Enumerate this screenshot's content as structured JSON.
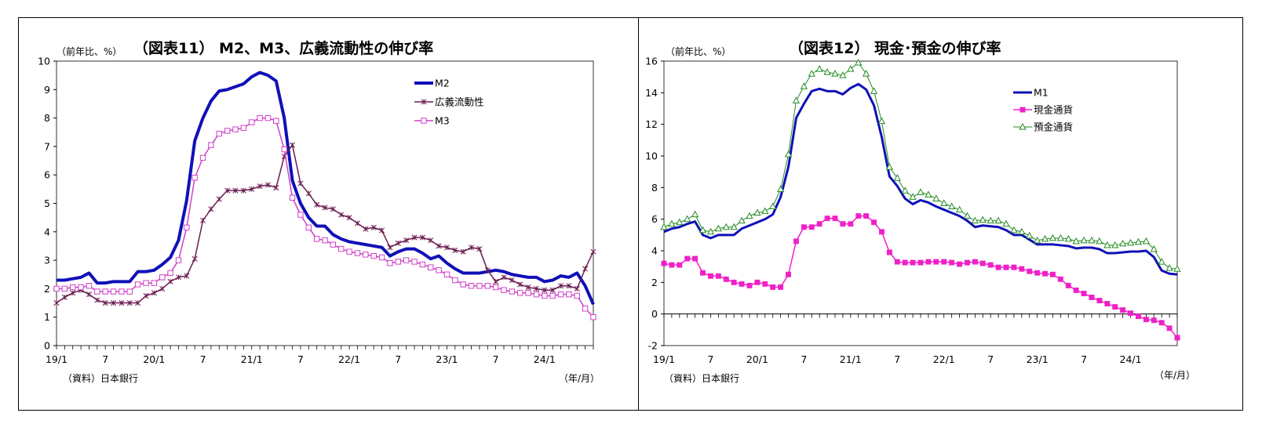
{
  "chart_data": [
    {
      "type": "line",
      "title": "（図表11） M2、M3、広義流動性の伸び率",
      "unit_label": "（前年比、%）",
      "source": "（資料）日本銀行",
      "xaxis_unit": "（年/月）",
      "ylim": [
        0,
        10
      ],
      "yticks": [
        0,
        1,
        2,
        3,
        4,
        5,
        6,
        7,
        8,
        9,
        10
      ],
      "x_tick_labels": [
        {
          "index": 0,
          "label": "19/1"
        },
        {
          "index": 6,
          "label": "7"
        },
        {
          "index": 12,
          "label": "20/1"
        },
        {
          "index": 18,
          "label": "7"
        },
        {
          "index": 24,
          "label": "21/1"
        },
        {
          "index": 30,
          "label": "7"
        },
        {
          "index": 36,
          "label": "22/1"
        },
        {
          "index": 42,
          "label": "7"
        },
        {
          "index": 48,
          "label": "23/1"
        },
        {
          "index": 54,
          "label": "7"
        },
        {
          "index": 60,
          "label": "24/1"
        }
      ],
      "n_months": 67,
      "legend_position": "top-right",
      "series": [
        {
          "name": "M2",
          "color": "#1010b8",
          "marker": "none",
          "width": 4,
          "values": [
            2.3,
            2.3,
            2.35,
            2.4,
            2.55,
            2.2,
            2.2,
            2.25,
            2.25,
            2.25,
            2.6,
            2.6,
            2.65,
            2.85,
            3.1,
            3.7,
            5.1,
            7.2,
            8.0,
            8.6,
            8.95,
            9.0,
            9.1,
            9.2,
            9.45,
            9.6,
            9.5,
            9.3,
            8.0,
            5.8,
            5.0,
            4.5,
            4.2,
            4.2,
            3.9,
            3.75,
            3.65,
            3.6,
            3.55,
            3.5,
            3.45,
            3.15,
            3.3,
            3.4,
            3.4,
            3.25,
            3.05,
            3.15,
            2.9,
            2.7,
            2.55,
            2.55,
            2.55,
            2.6,
            2.65,
            2.6,
            2.5,
            2.45,
            2.4,
            2.4,
            2.25,
            2.3,
            2.45,
            2.4,
            2.55,
            2.1,
            1.45
          ]
        },
        {
          "name": "広義流動性",
          "color": "#6a1b50",
          "marker": "asterisk",
          "width": 1.5,
          "values": [
            1.5,
            1.7,
            1.85,
            1.95,
            1.8,
            1.6,
            1.5,
            1.5,
            1.5,
            1.5,
            1.5,
            1.75,
            1.85,
            2.0,
            2.25,
            2.4,
            2.45,
            3.05,
            4.4,
            4.8,
            5.15,
            5.45,
            5.45,
            5.45,
            5.5,
            5.6,
            5.65,
            5.55,
            6.65,
            7.05,
            5.7,
            5.35,
            4.95,
            4.85,
            4.8,
            4.6,
            4.5,
            4.3,
            4.1,
            4.15,
            4.05,
            3.45,
            3.6,
            3.7,
            3.8,
            3.8,
            3.7,
            3.5,
            3.45,
            3.35,
            3.3,
            3.45,
            3.4,
            2.65,
            2.25,
            2.4,
            2.3,
            2.15,
            2.05,
            2.0,
            1.95,
            1.95,
            2.1,
            2.1,
            2.0,
            2.7,
            3.3
          ]
        },
        {
          "name": "M3",
          "color": "#d040c8",
          "marker": "open-square",
          "width": 1.5,
          "values": [
            2.0,
            2.0,
            2.05,
            2.05,
            2.1,
            1.9,
            1.9,
            1.9,
            1.9,
            1.9,
            2.15,
            2.2,
            2.2,
            2.4,
            2.55,
            3.0,
            4.15,
            5.9,
            6.6,
            7.05,
            7.45,
            7.55,
            7.6,
            7.65,
            7.85,
            8.0,
            8.0,
            7.9,
            6.9,
            5.2,
            4.6,
            4.15,
            3.75,
            3.7,
            3.55,
            3.4,
            3.3,
            3.25,
            3.2,
            3.15,
            3.1,
            2.9,
            2.95,
            3.0,
            2.95,
            2.85,
            2.75,
            2.65,
            2.5,
            2.3,
            2.15,
            2.1,
            2.1,
            2.1,
            2.05,
            1.95,
            1.9,
            1.85,
            1.85,
            1.8,
            1.75,
            1.75,
            1.8,
            1.8,
            1.75,
            1.3,
            1.0
          ]
        }
      ]
    },
    {
      "type": "line",
      "title": "（図表12） 現金･預金の伸び率",
      "unit_label": "（前年比、%）",
      "source": "（資料）日本銀行",
      "xaxis_unit": "（年/月）",
      "ylim": [
        -2,
        16
      ],
      "yticks": [
        -2,
        0,
        2,
        4,
        6,
        8,
        10,
        12,
        14,
        16
      ],
      "x_tick_labels": [
        {
          "index": 0,
          "label": "19/1"
        },
        {
          "index": 6,
          "label": "7"
        },
        {
          "index": 12,
          "label": "20/1"
        },
        {
          "index": 18,
          "label": "7"
        },
        {
          "index": 24,
          "label": "21/1"
        },
        {
          "index": 30,
          "label": "7"
        },
        {
          "index": 36,
          "label": "22/1"
        },
        {
          "index": 42,
          "label": "7"
        },
        {
          "index": 48,
          "label": "23/1"
        },
        {
          "index": 54,
          "label": "7"
        },
        {
          "index": 60,
          "label": "24/1"
        }
      ],
      "n_months": 67,
      "legend_position": "top-right",
      "series": [
        {
          "name": "M1",
          "color": "#1010b8",
          "marker": "none",
          "width": 3,
          "values": [
            5.2,
            5.4,
            5.5,
            5.7,
            5.85,
            5.0,
            4.8,
            5.0,
            5.0,
            5.0,
            5.4,
            5.6,
            5.8,
            6.0,
            6.3,
            7.4,
            9.3,
            12.4,
            13.3,
            14.1,
            14.25,
            14.1,
            14.1,
            13.9,
            14.3,
            14.55,
            14.2,
            13.2,
            11.2,
            8.7,
            8.1,
            7.3,
            6.95,
            7.2,
            7.05,
            6.8,
            6.6,
            6.4,
            6.2,
            5.9,
            5.5,
            5.6,
            5.55,
            5.5,
            5.3,
            5.0,
            5.0,
            4.7,
            4.4,
            4.4,
            4.4,
            4.35,
            4.3,
            4.15,
            4.2,
            4.2,
            4.1,
            3.85,
            3.85,
            3.9,
            3.95,
            3.95,
            4.0,
            3.6,
            2.75,
            2.55,
            2.5
          ]
        },
        {
          "name": "現金通貨",
          "color": "#f020c8",
          "marker": "filled-square",
          "width": 1.5,
          "values": [
            3.2,
            3.1,
            3.1,
            3.5,
            3.5,
            2.6,
            2.4,
            2.4,
            2.2,
            2.0,
            1.9,
            1.8,
            2.0,
            1.9,
            1.7,
            1.7,
            2.5,
            4.6,
            5.5,
            5.5,
            5.7,
            6.05,
            6.05,
            5.7,
            5.7,
            6.2,
            6.2,
            5.8,
            5.2,
            3.9,
            3.3,
            3.25,
            3.25,
            3.25,
            3.3,
            3.3,
            3.3,
            3.25,
            3.15,
            3.25,
            3.3,
            3.2,
            3.1,
            2.95,
            2.95,
            2.95,
            2.85,
            2.7,
            2.6,
            2.55,
            2.5,
            2.2,
            1.8,
            1.5,
            1.3,
            1.05,
            0.85,
            0.65,
            0.45,
            0.25,
            0.05,
            -0.15,
            -0.35,
            -0.4,
            -0.55,
            -0.9,
            -1.5
          ]
        },
        {
          "name": "預金通貨",
          "color": "#228b22",
          "marker": "open-triangle",
          "width": 1,
          "values": [
            5.5,
            5.7,
            5.8,
            6.0,
            6.3,
            5.3,
            5.2,
            5.4,
            5.5,
            5.5,
            5.9,
            6.2,
            6.4,
            6.5,
            6.8,
            7.9,
            10.1,
            13.5,
            14.4,
            15.2,
            15.5,
            15.3,
            15.2,
            15.1,
            15.5,
            15.9,
            15.2,
            14.1,
            12.2,
            9.3,
            8.6,
            7.8,
            7.4,
            7.7,
            7.55,
            7.3,
            7.0,
            6.8,
            6.6,
            6.2,
            5.9,
            5.95,
            5.9,
            5.9,
            5.7,
            5.3,
            5.2,
            4.95,
            4.65,
            4.75,
            4.8,
            4.8,
            4.75,
            4.6,
            4.65,
            4.65,
            4.6,
            4.35,
            4.35,
            4.45,
            4.5,
            4.55,
            4.6,
            4.1,
            3.3,
            2.9,
            2.85
          ]
        }
      ]
    }
  ]
}
